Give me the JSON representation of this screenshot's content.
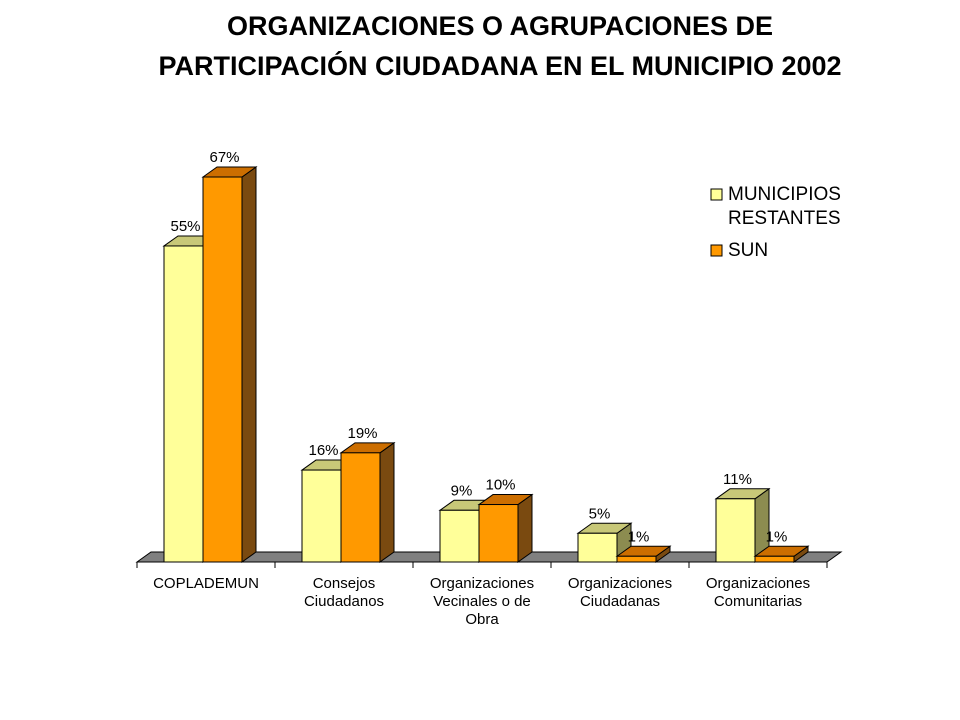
{
  "chart_data": {
    "type": "bar",
    "title_lines": [
      "ORGANIZACIONES O AGRUPACIONES DE",
      "PARTICIPACIÓN CIUDADANA EN EL MUNICIPIO 2002"
    ],
    "categories": [
      [
        "COPLADEMUN"
      ],
      [
        "Consejos",
        "Ciudadanos"
      ],
      [
        "Organizaciones",
        "Vecinales o de",
        "Obra"
      ],
      [
        "Organizaciones",
        "Ciudadanas"
      ],
      [
        "Organizaciones",
        "Comunitarias"
      ]
    ],
    "series": [
      {
        "name": [
          "MUNICIPIOS",
          "RESTANTES"
        ],
        "values": [
          55,
          16,
          9,
          5,
          11
        ],
        "labels": [
          "55%",
          "16%",
          "9%",
          "5%",
          "11%"
        ],
        "color": "#FFFF99",
        "top_color": "#C8C878",
        "side_color": "#8C8C50"
      },
      {
        "name": [
          "SUN"
        ],
        "values": [
          67,
          19,
          10,
          1,
          1
        ],
        "labels": [
          "67%",
          "19%",
          "10%",
          "1%",
          "1%"
        ],
        "color": "#FF9900",
        "top_color": "#CC6E00",
        "side_color": "#7A4A10"
      }
    ],
    "ylim": [
      0,
      67
    ],
    "legend_position": "top-right",
    "grid": false,
    "three_d": true
  }
}
